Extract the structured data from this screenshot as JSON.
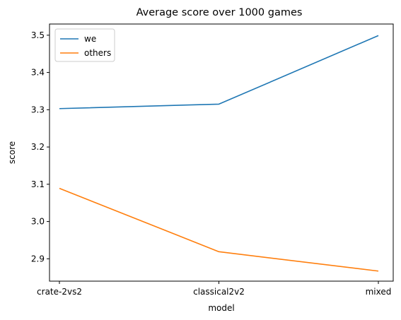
{
  "chart_data": {
    "type": "line",
    "title": "Average score over 1000 games",
    "xlabel": "model",
    "ylabel": "score",
    "categories": [
      "crate-2vs2",
      "classical2v2",
      "mixed"
    ],
    "series": [
      {
        "name": "we",
        "values": [
          3.303,
          3.315,
          3.499
        ],
        "color": "#1f77b4"
      },
      {
        "name": "others",
        "values": [
          3.089,
          2.919,
          2.867
        ],
        "color": "#ff7f0e"
      }
    ],
    "ylim": [
      2.84,
      3.53
    ],
    "yticks": [
      2.9,
      3.0,
      3.1,
      3.2,
      3.3,
      3.4,
      3.5
    ],
    "ytick_labels": [
      "2.9",
      "3.0",
      "3.1",
      "3.2",
      "3.3",
      "3.4",
      "3.5"
    ],
    "grid": false,
    "legend_position": "upper-left"
  }
}
